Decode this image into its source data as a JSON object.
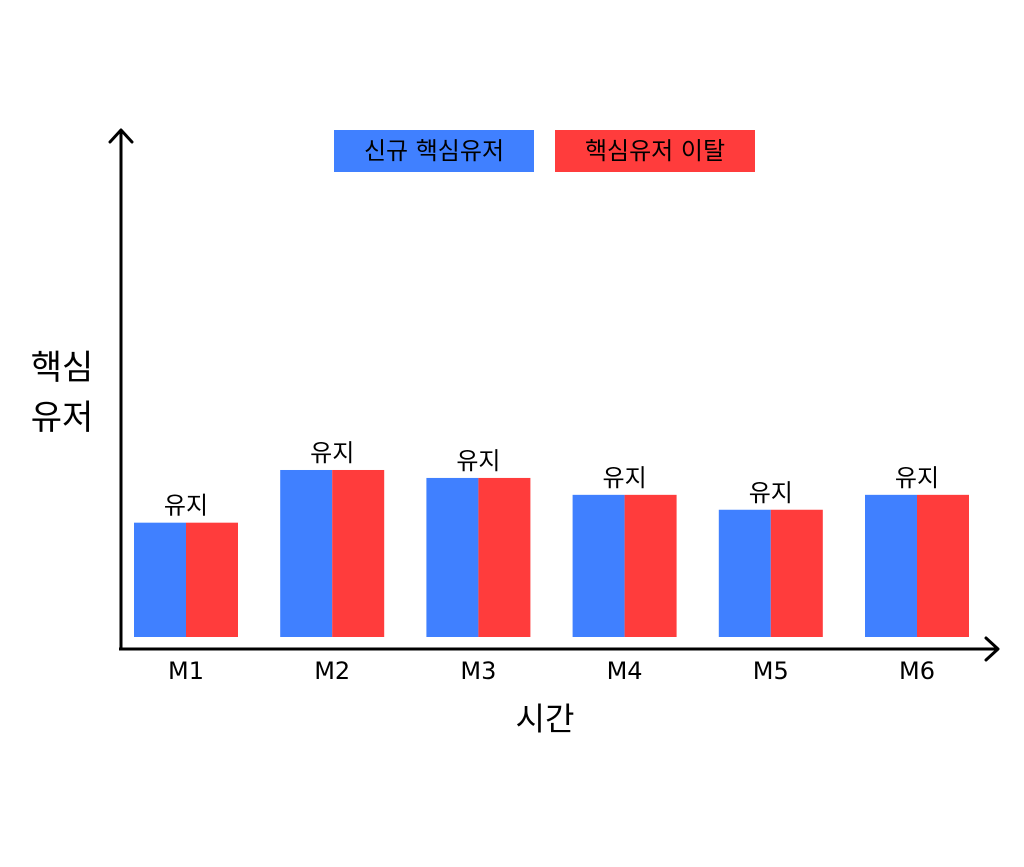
{
  "chart_data": {
    "type": "bar",
    "title": "",
    "xlabel": "시간",
    "ylabel_lines": [
      "핵심",
      "유저"
    ],
    "categories": [
      "M1",
      "M2",
      "M3",
      "M4",
      "M5",
      "M6"
    ],
    "series": [
      {
        "name": "신규 핵심유저",
        "color": "#4080ff",
        "values": [
          115,
          168,
          160,
          143,
          128,
          143
        ]
      },
      {
        "name": "핵심유저 이탈",
        "color": "#ff3c3c",
        "values": [
          115,
          168,
          160,
          143,
          128,
          143
        ]
      }
    ],
    "bar_labels": [
      "유지",
      "유지",
      "유지",
      "유지",
      "유지",
      "유지"
    ],
    "ylim": [
      0,
      510
    ],
    "grid": false,
    "legend_position": "top"
  }
}
